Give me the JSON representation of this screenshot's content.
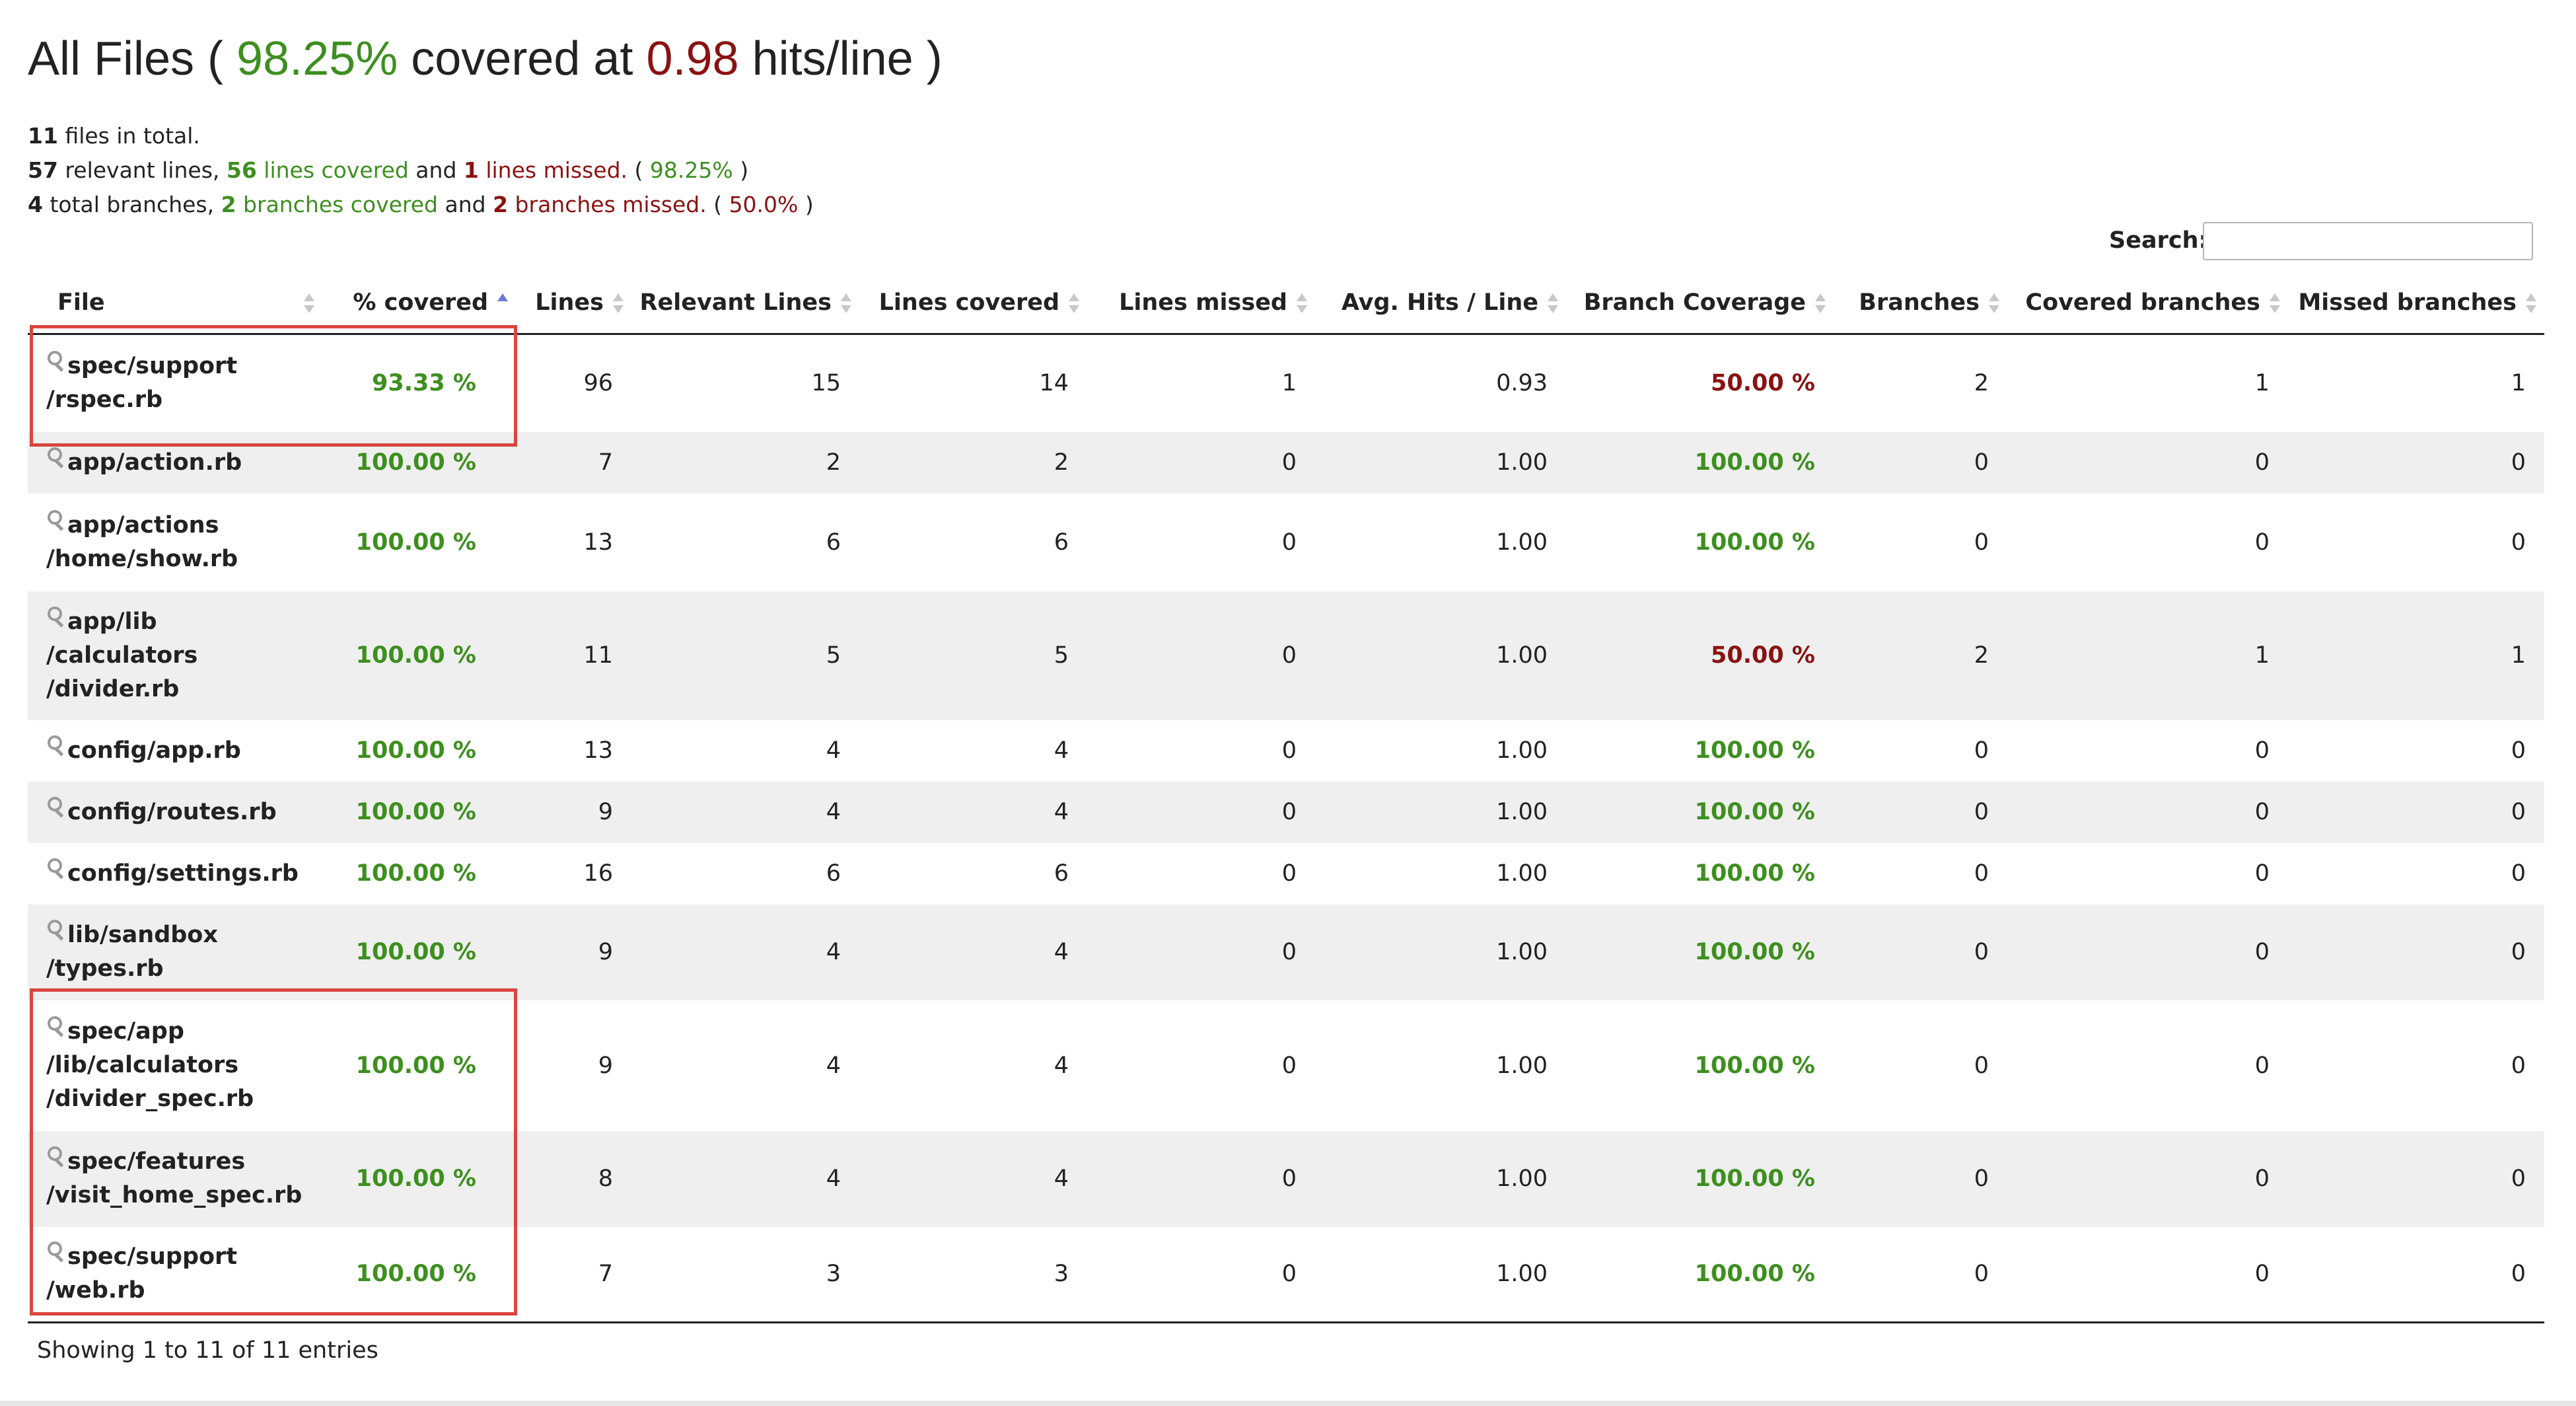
{
  "title": {
    "prefix": "All Files ( ",
    "percent": "98.25%",
    "mid": " covered at ",
    "hits": "0.98",
    "suffix": " hits/line )"
  },
  "summary": {
    "files_total": "11",
    "files_text": " files in total.",
    "relevant_lines": "57",
    "relevant_text": " relevant lines, ",
    "lines_covered": "56",
    "lines_covered_text": " lines covered",
    "and1": " and ",
    "lines_missed": "1",
    "lines_missed_text": " lines missed.",
    "lines_pct_open": " ( ",
    "lines_pct": "98.25%",
    "lines_pct_close": " )",
    "total_branches": "4",
    "branches_text": " total branches, ",
    "branches_covered": "2",
    "branches_covered_text": " branches covered",
    "and2": " and ",
    "branches_missed": "2",
    "branches_missed_text": " branches missed.",
    "branches_pct_open": " ( ",
    "branches_pct": "50.0%",
    "branches_pct_close": " )"
  },
  "search": {
    "label": "Search:",
    "value": ""
  },
  "table": {
    "headers": {
      "file": "File",
      "covered": "% covered",
      "lines": "Lines",
      "relevant": "Relevant Lines",
      "lines_covered": "Lines covered",
      "lines_missed": "Lines missed",
      "avg_hits": "Avg. Hits / Line",
      "branch_cov": "Branch Coverage",
      "branches": "Branches",
      "covered_branches": "Covered branches",
      "missed_branches": "Missed branches"
    },
    "rows": [
      {
        "file": [
          "spec/support",
          "/rspec.rb"
        ],
        "covered": "93.33 %",
        "lines": "96",
        "relevant": "15",
        "lines_covered": "14",
        "lines_missed": "1",
        "avg_hits": "0.93",
        "branch_cov": "50.00 %",
        "branches": "2",
        "covered_branches": "1",
        "missed_branches": "1"
      },
      {
        "file": [
          "app/action.rb"
        ],
        "covered": "100.00 %",
        "lines": "7",
        "relevant": "2",
        "lines_covered": "2",
        "lines_missed": "0",
        "avg_hits": "1.00",
        "branch_cov": "100.00 %",
        "branches": "0",
        "covered_branches": "0",
        "missed_branches": "0"
      },
      {
        "file": [
          "app/actions",
          "/home/show.rb"
        ],
        "covered": "100.00 %",
        "lines": "13",
        "relevant": "6",
        "lines_covered": "6",
        "lines_missed": "0",
        "avg_hits": "1.00",
        "branch_cov": "100.00 %",
        "branches": "0",
        "covered_branches": "0",
        "missed_branches": "0"
      },
      {
        "file": [
          "app/lib",
          "/calculators",
          "/divider.rb"
        ],
        "covered": "100.00 %",
        "lines": "11",
        "relevant": "5",
        "lines_covered": "5",
        "lines_missed": "0",
        "avg_hits": "1.00",
        "branch_cov": "50.00 %",
        "branches": "2",
        "covered_branches": "1",
        "missed_branches": "1"
      },
      {
        "file": [
          "config/app.rb"
        ],
        "covered": "100.00 %",
        "lines": "13",
        "relevant": "4",
        "lines_covered": "4",
        "lines_missed": "0",
        "avg_hits": "1.00",
        "branch_cov": "100.00 %",
        "branches": "0",
        "covered_branches": "0",
        "missed_branches": "0"
      },
      {
        "file": [
          "config/routes.rb"
        ],
        "covered": "100.00 %",
        "lines": "9",
        "relevant": "4",
        "lines_covered": "4",
        "lines_missed": "0",
        "avg_hits": "1.00",
        "branch_cov": "100.00 %",
        "branches": "0",
        "covered_branches": "0",
        "missed_branches": "0"
      },
      {
        "file": [
          "config/settings.rb"
        ],
        "covered": "100.00 %",
        "lines": "16",
        "relevant": "6",
        "lines_covered": "6",
        "lines_missed": "0",
        "avg_hits": "1.00",
        "branch_cov": "100.00 %",
        "branches": "0",
        "covered_branches": "0",
        "missed_branches": "0"
      },
      {
        "file": [
          "lib/sandbox",
          "/types.rb"
        ],
        "covered": "100.00 %",
        "lines": "9",
        "relevant": "4",
        "lines_covered": "4",
        "lines_missed": "0",
        "avg_hits": "1.00",
        "branch_cov": "100.00 %",
        "branches": "0",
        "covered_branches": "0",
        "missed_branches": "0"
      },
      {
        "file": [
          "spec/app",
          "/lib/calculators",
          "/divider_spec.rb"
        ],
        "covered": "100.00 %",
        "lines": "9",
        "relevant": "4",
        "lines_covered": "4",
        "lines_missed": "0",
        "avg_hits": "1.00",
        "branch_cov": "100.00 %",
        "branches": "0",
        "covered_branches": "0",
        "missed_branches": "0"
      },
      {
        "file": [
          "spec/features",
          "/visit_home_spec.rb"
        ],
        "covered": "100.00 %",
        "lines": "8",
        "relevant": "4",
        "lines_covered": "4",
        "lines_missed": "0",
        "avg_hits": "1.00",
        "branch_cov": "100.00 %",
        "branches": "0",
        "covered_branches": "0",
        "missed_branches": "0"
      },
      {
        "file": [
          "spec/support",
          "/web.rb"
        ],
        "covered": "100.00 %",
        "lines": "7",
        "relevant": "3",
        "lines_covered": "3",
        "lines_missed": "0",
        "avg_hits": "1.00",
        "branch_cov": "100.00 %",
        "branches": "0",
        "covered_branches": "0",
        "missed_branches": "0"
      }
    ]
  },
  "footer": {
    "showing": "Showing 1 to 11 of 11 entries"
  },
  "colors": {
    "good": "#3d8f1f",
    "bad": "#8a1212",
    "highlight": "#d9453d"
  }
}
